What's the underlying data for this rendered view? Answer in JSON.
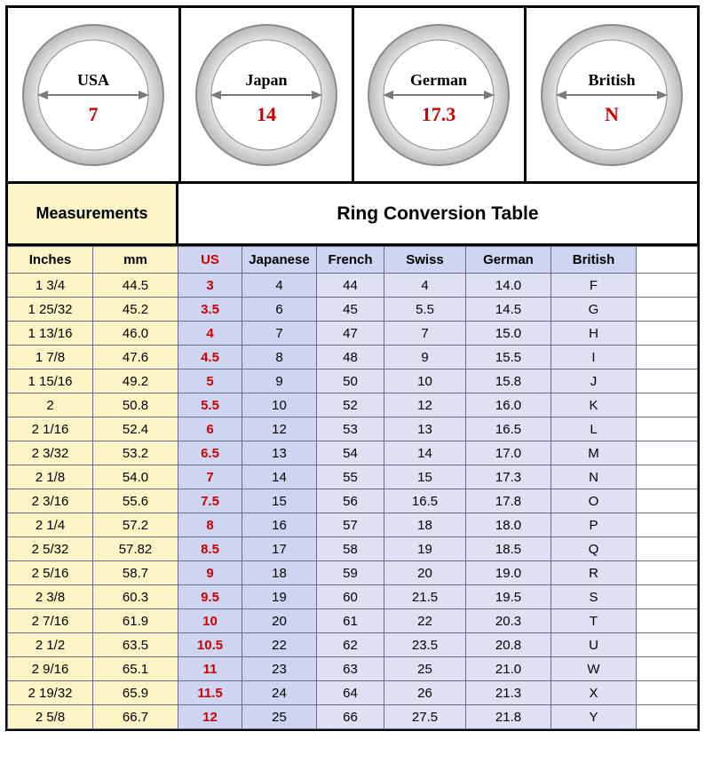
{
  "colors": {
    "pageBg": "#ffffff",
    "measBg": "#fdf5c5",
    "cellBgA": "#cfd5f0",
    "cellBgB": "#dde1f3",
    "usText": "#cc0000",
    "ringMetalOuter": "#bcbcbc",
    "ringMetalInner": "#e2e2e2",
    "ringShadow": "#8a8a8a",
    "arrow": "#7a7a7a",
    "countryText": "#000000",
    "ringValue": "#cc0000",
    "black": "#000000"
  },
  "rings": [
    {
      "country": "USA",
      "value": "7"
    },
    {
      "country": "Japan",
      "value": "14"
    },
    {
      "country": "German",
      "value": "17.3"
    },
    {
      "country": "British",
      "value": "N"
    }
  ],
  "subheader": {
    "left": "Measurements",
    "right": "Ring Conversion Table",
    "leftWidthPx": 192,
    "heightPx": 70
  },
  "columns": [
    {
      "key": "inches",
      "label": "Inches",
      "cls": "c-inch"
    },
    {
      "key": "mm",
      "label": "mm",
      "cls": "c-mm"
    },
    {
      "key": "us",
      "label": "US",
      "cls": "c-us"
    },
    {
      "key": "japanese",
      "label": "Japanese",
      "cls": "c-jp"
    },
    {
      "key": "french",
      "label": "French",
      "cls": "c-fr"
    },
    {
      "key": "swiss",
      "label": "Swiss",
      "cls": "c-sw"
    },
    {
      "key": "german",
      "label": "German",
      "cls": "c-ge"
    },
    {
      "key": "british",
      "label": "British",
      "cls": "c-br"
    }
  ],
  "rows": [
    {
      "inches": "1 3/4",
      "mm": "44.5",
      "us": "3",
      "japanese": "4",
      "french": "44",
      "swiss": "4",
      "german": "14.0",
      "british": "F"
    },
    {
      "inches": "1 25/32",
      "mm": "45.2",
      "us": "3.5",
      "japanese": "6",
      "french": "45",
      "swiss": "5.5",
      "german": "14.5",
      "british": "G"
    },
    {
      "inches": "1 13/16",
      "mm": "46.0",
      "us": "4",
      "japanese": "7",
      "french": "47",
      "swiss": "7",
      "german": "15.0",
      "british": "H"
    },
    {
      "inches": "1 7/8",
      "mm": "47.6",
      "us": "4.5",
      "japanese": "8",
      "french": "48",
      "swiss": "9",
      "german": "15.5",
      "british": "I"
    },
    {
      "inches": "1 15/16",
      "mm": "49.2",
      "us": "5",
      "japanese": "9",
      "french": "50",
      "swiss": "10",
      "german": "15.8",
      "british": "J"
    },
    {
      "inches": "2",
      "mm": "50.8",
      "us": "5.5",
      "japanese": "10",
      "french": "52",
      "swiss": "12",
      "german": "16.0",
      "british": "K"
    },
    {
      "inches": "2 1/16",
      "mm": "52.4",
      "us": "6",
      "japanese": "12",
      "french": "53",
      "swiss": "13",
      "german": "16.5",
      "british": "L"
    },
    {
      "inches": "2 3/32",
      "mm": "53.2",
      "us": "6.5",
      "japanese": "13",
      "french": "54",
      "swiss": "14",
      "german": "17.0",
      "british": "M"
    },
    {
      "inches": "2 1/8",
      "mm": "54.0",
      "us": "7",
      "japanese": "14",
      "french": "55",
      "swiss": "15",
      "german": "17.3",
      "british": "N"
    },
    {
      "inches": "2 3/16",
      "mm": "55.6",
      "us": "7.5",
      "japanese": "15",
      "french": "56",
      "swiss": "16.5",
      "german": "17.8",
      "british": "O"
    },
    {
      "inches": "2 1/4",
      "mm": "57.2",
      "us": "8",
      "japanese": "16",
      "french": "57",
      "swiss": "18",
      "german": "18.0",
      "british": "P"
    },
    {
      "inches": "2 5/32",
      "mm": "57.82",
      "us": "8.5",
      "japanese": "17",
      "french": "58",
      "swiss": "19",
      "german": "18.5",
      "british": "Q"
    },
    {
      "inches": "2 5/16",
      "mm": "58.7",
      "us": "9",
      "japanese": "18",
      "french": "59",
      "swiss": "20",
      "german": "19.0",
      "british": "R"
    },
    {
      "inches": "2 3/8",
      "mm": "60.3",
      "us": "9.5",
      "japanese": "19",
      "french": "60",
      "swiss": "21.5",
      "german": "19.5",
      "british": "S"
    },
    {
      "inches": "2 7/16",
      "mm": "61.9",
      "us": "10",
      "japanese": "20",
      "french": "61",
      "swiss": "22",
      "german": "20.3",
      "british": "T"
    },
    {
      "inches": "2 1/2",
      "mm": "63.5",
      "us": "10.5",
      "japanese": "22",
      "french": "62",
      "swiss": "23.5",
      "german": "20.8",
      "british": "U"
    },
    {
      "inches": "2 9/16",
      "mm": "65.1",
      "us": "11",
      "japanese": "23",
      "french": "63",
      "swiss": "25",
      "german": "21.0",
      "british": "W"
    },
    {
      "inches": "2 19/32",
      "mm": "65.9",
      "us": "11.5",
      "japanese": "24",
      "french": "64",
      "swiss": "26",
      "german": "21.3",
      "british": "X"
    },
    {
      "inches": "2 5/8",
      "mm": "66.7",
      "us": "12",
      "japanese": "25",
      "french": "66",
      "swiss": "27.5",
      "german": "21.8",
      "british": "Y"
    }
  ]
}
